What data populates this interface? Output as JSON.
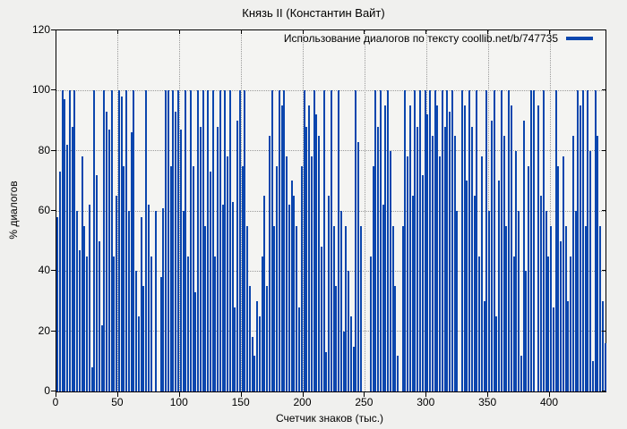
{
  "title": "Князь II (Константин Вайт)",
  "legend": {
    "label": "Использование диалогов по тексту coollib.net/b/747735"
  },
  "axes": {
    "x_label": "Счетчик знаков (тыс.)",
    "y_label": "% диалогов"
  },
  "colors": {
    "bar": "#0b46ae",
    "background": "#f0f0ee",
    "plot_background": "#f4f4f2",
    "grid": "#9a9a9a",
    "border": "#000000"
  },
  "chart_data": {
    "type": "bar",
    "title": "Князь II (Константин Вайт)",
    "xlabel": "Счетчик знаков (тыс.)",
    "ylabel": "% диалогов",
    "legend_entry": "Использование диалогов по тексту coollib.net/b/747735",
    "legend_position": "top-right",
    "grid": true,
    "xlim": [
      0,
      445
    ],
    "ylim": [
      0,
      120
    ],
    "xticks": [
      0,
      50,
      100,
      150,
      200,
      250,
      300,
      350,
      400
    ],
    "yticks": [
      0,
      20,
      40,
      60,
      80,
      100,
      120
    ],
    "x_step": 2,
    "values": [
      58,
      73,
      100,
      97,
      82,
      100,
      88,
      100,
      60,
      47,
      78,
      55,
      45,
      62,
      8,
      100,
      72,
      50,
      22,
      100,
      93,
      87,
      100,
      45,
      65,
      100,
      98,
      75,
      100,
      60,
      86,
      100,
      40,
      25,
      58,
      35,
      100,
      62,
      45,
      0,
      60,
      0,
      38,
      61,
      100,
      100,
      75,
      100,
      93,
      100,
      87,
      60,
      100,
      45,
      100,
      75,
      33,
      100,
      88,
      100,
      55,
      100,
      73,
      100,
      45,
      88,
      100,
      62,
      100,
      78,
      100,
      63,
      28,
      90,
      100,
      75,
      100,
      55,
      35,
      18,
      12,
      30,
      25,
      45,
      65,
      35,
      85,
      100,
      55,
      75,
      100,
      95,
      100,
      78,
      62,
      70,
      65,
      55,
      28,
      75,
      100,
      88,
      95,
      78,
      100,
      92,
      85,
      48,
      100,
      13,
      65,
      100,
      55,
      35,
      100,
      60,
      20,
      55,
      40,
      25,
      15,
      100,
      83,
      55,
      0,
      0,
      0,
      45,
      75,
      100,
      88,
      100,
      62,
      95,
      100,
      80,
      55,
      35,
      12,
      0,
      55,
      100,
      78,
      95,
      65,
      100,
      88,
      100,
      72,
      100,
      92,
      100,
      85,
      100,
      95,
      78,
      100,
      88,
      100,
      93,
      100,
      85,
      60,
      0,
      100,
      95,
      70,
      100,
      88,
      65,
      100,
      45,
      78,
      30,
      100,
      60,
      90,
      100,
      25,
      70,
      100,
      85,
      55,
      100,
      95,
      45,
      80,
      60,
      12,
      90,
      40,
      75,
      100,
      100,
      0,
      95,
      65,
      100,
      60,
      45,
      55,
      28,
      100,
      75,
      50,
      78,
      55,
      30,
      45,
      85,
      60,
      100,
      95,
      100,
      55,
      100,
      80,
      10,
      100,
      85,
      55,
      30,
      16
    ]
  }
}
